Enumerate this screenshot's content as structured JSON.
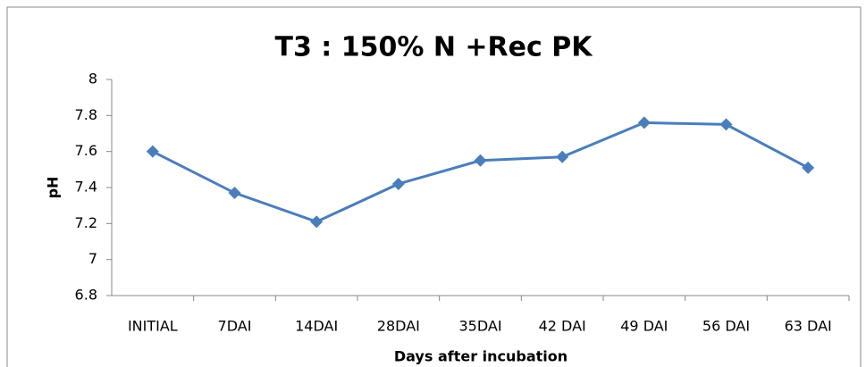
{
  "chart_data": {
    "type": "line",
    "title": "T3 : 150% N +Rec PK",
    "x_label": "Days after incubation",
    "y_label": "pH",
    "categories": [
      "INITIAL",
      "7DAI",
      "14DAI",
      "28DAI",
      "35DAI",
      "42 DAI",
      "49 DAI",
      "56 DAI",
      "63 DAI"
    ],
    "series": [
      {
        "name": "T3 : 150% N +Rec PK",
        "color": "#4a7ebb",
        "values": [
          7.6,
          7.37,
          7.21,
          7.42,
          7.55,
          7.57,
          7.76,
          7.75,
          7.51
        ]
      }
    ],
    "ylim": [
      6.8,
      8
    ],
    "yticks": [
      6.8,
      7,
      7.2,
      7.4,
      7.6,
      7.8,
      8
    ],
    "grid": false
  }
}
